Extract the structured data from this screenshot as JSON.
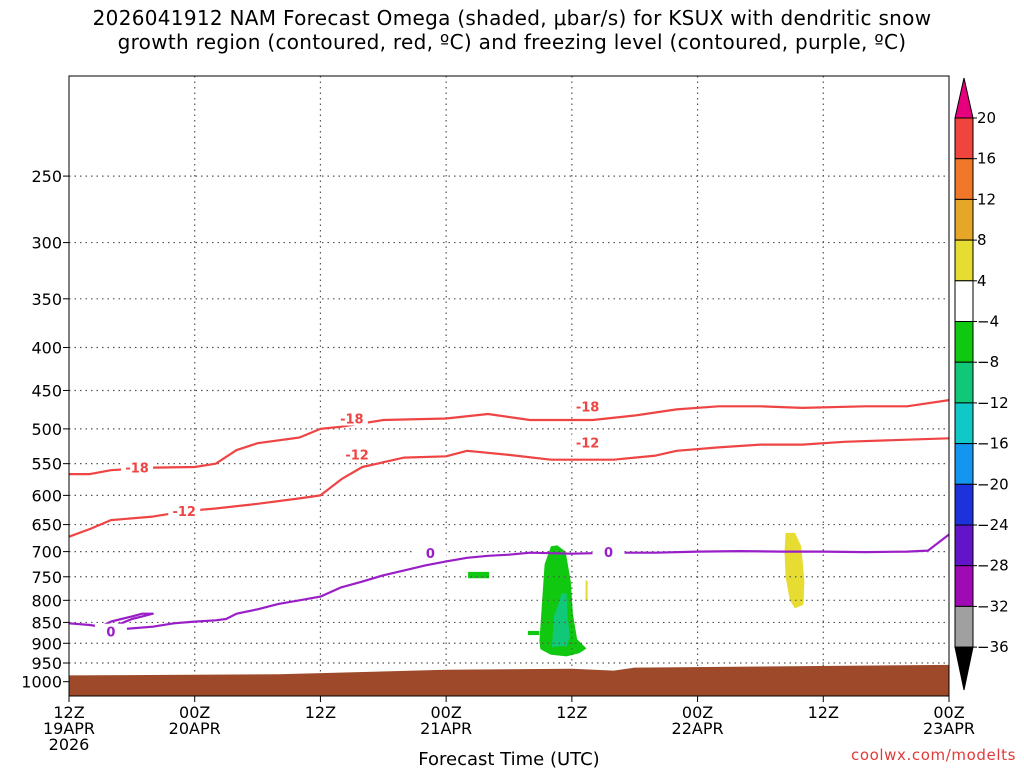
{
  "title_lines": [
    "2026041912 NAM Forecast Omega (shaded, μbar/s) for KSUX with dendritic snow",
    "growth region (contoured, red, ºC) and freezing level (contoured, purple, ºC)"
  ],
  "credit": "coolwx.com/modelts",
  "chart_data": {
    "type": "heatmap",
    "title": "2026041912 NAM Forecast Omega (shaded, μbar/s) for KSUX with dendritic snow growth region (contoured, red, ºC) and freezing level (contoured, purple, ºC)",
    "xlabel": "Forecast Time (UTC)",
    "ylabel": "",
    "x_range_hours": [
      0,
      84
    ],
    "x_ticks": [
      {
        "hour": 0,
        "label": [
          "12Z",
          "19APR",
          "2026"
        ]
      },
      {
        "hour": 12,
        "label": [
          "00Z",
          "20APR"
        ]
      },
      {
        "hour": 24,
        "label": [
          "12Z"
        ]
      },
      {
        "hour": 36,
        "label": [
          "00Z",
          "21APR"
        ]
      },
      {
        "hour": 48,
        "label": [
          "12Z"
        ]
      },
      {
        "hour": 60,
        "label": [
          "00Z",
          "22APR"
        ]
      },
      {
        "hour": 72,
        "label": [
          "12Z"
        ]
      },
      {
        "hour": 84,
        "label": [
          "00Z",
          "23APR"
        ]
      }
    ],
    "y_axis": "pressure (hPa), inverted",
    "y_range": [
      1040,
      190
    ],
    "y_ticks": [
      250,
      300,
      350,
      400,
      450,
      500,
      550,
      600,
      650,
      700,
      750,
      800,
      850,
      900,
      950,
      1000
    ],
    "grid": true,
    "colorbar": {
      "ticks": [
        20,
        16,
        12,
        8,
        4,
        -4,
        -8,
        -12,
        -16,
        -20,
        -24,
        -28,
        -32,
        -36
      ],
      "colors": [
        "#e6007e",
        "#f0453c",
        "#f07828",
        "#e6a628",
        "#e6dc32",
        "#ffffff",
        "#10c810",
        "#10c878",
        "#10c8c8",
        "#1496f0",
        "#1e32dc",
        "#6414c8",
        "#a00ab4",
        "#a0a0a0",
        "#000000"
      ]
    },
    "contours": [
      {
        "name": "-18",
        "color": "#ef4444",
        "points": [
          [
            0,
            566
          ],
          [
            2,
            566
          ],
          [
            4,
            560
          ],
          [
            8,
            556
          ],
          [
            12,
            555
          ],
          [
            14,
            550
          ],
          [
            16,
            530
          ],
          [
            18,
            520
          ],
          [
            22,
            512
          ],
          [
            24,
            500
          ],
          [
            26,
            497
          ],
          [
            30,
            488
          ],
          [
            36,
            486
          ],
          [
            40,
            480
          ],
          [
            44,
            488
          ],
          [
            50,
            488
          ],
          [
            54,
            482
          ],
          [
            58,
            474
          ],
          [
            62,
            470
          ],
          [
            66,
            470
          ],
          [
            70,
            472
          ],
          [
            76,
            470
          ],
          [
            80,
            470
          ],
          [
            84,
            462
          ]
        ]
      },
      {
        "name": "-12",
        "color": "#ef4444",
        "points": [
          [
            0,
            672
          ],
          [
            2,
            658
          ],
          [
            4,
            642
          ],
          [
            8,
            636
          ],
          [
            10,
            630
          ],
          [
            12,
            625
          ],
          [
            14,
            622
          ],
          [
            18,
            614
          ],
          [
            22,
            605
          ],
          [
            24,
            600
          ],
          [
            26,
            574
          ],
          [
            28,
            555
          ],
          [
            32,
            541
          ],
          [
            36,
            539
          ],
          [
            38,
            531
          ],
          [
            42,
            537
          ],
          [
            46,
            544
          ],
          [
            52,
            544
          ],
          [
            56,
            538
          ],
          [
            58,
            531
          ],
          [
            62,
            526
          ],
          [
            66,
            522
          ],
          [
            70,
            522
          ],
          [
            74,
            518
          ],
          [
            80,
            515
          ],
          [
            84,
            513
          ]
        ]
      },
      {
        "name": "0",
        "color": "#9a1ec8",
        "points": [
          [
            0,
            852
          ],
          [
            2,
            856
          ],
          [
            3,
            860
          ],
          [
            4,
            848
          ],
          [
            5,
            842
          ],
          [
            6,
            836
          ],
          [
            7,
            830
          ],
          [
            8,
            830
          ],
          [
            7,
            836
          ],
          [
            6,
            842
          ],
          [
            5,
            852
          ],
          [
            4,
            862
          ],
          [
            5,
            866
          ],
          [
            8,
            860
          ],
          [
            10,
            852
          ],
          [
            12,
            848
          ],
          [
            14,
            845
          ],
          [
            15,
            842
          ],
          [
            16,
            830
          ],
          [
            18,
            820
          ],
          [
            20,
            808
          ],
          [
            22,
            800
          ],
          [
            24,
            792
          ],
          [
            26,
            772
          ],
          [
            28,
            760
          ],
          [
            30,
            747
          ],
          [
            32,
            737
          ],
          [
            34,
            727
          ],
          [
            36,
            719
          ],
          [
            38,
            712
          ],
          [
            40,
            708
          ],
          [
            42,
            706
          ],
          [
            44,
            702
          ],
          [
            48,
            704
          ],
          [
            52,
            702
          ],
          [
            56,
            702
          ],
          [
            60,
            700
          ],
          [
            64,
            699
          ],
          [
            68,
            700
          ],
          [
            72,
            700
          ],
          [
            76,
            701
          ],
          [
            80,
            700
          ],
          [
            82,
            698
          ],
          [
            84,
            668
          ]
        ]
      }
    ],
    "omega_regions": [
      {
        "value_class": "-4 to -8",
        "color": "#10c810",
        "points": [
          [
            38.1,
            740
          ],
          [
            40.1,
            740
          ],
          [
            40.1,
            753
          ],
          [
            38.1,
            753
          ]
        ]
      },
      {
        "value_class": "-4 to -8",
        "color": "#10c810",
        "points": [
          [
            43.8,
            870
          ],
          [
            44.9,
            870
          ],
          [
            44.9,
            880
          ],
          [
            43.8,
            880
          ]
        ]
      },
      {
        "value_class": "-4 to -8",
        "color": "#10c810",
        "points": [
          [
            44.9,
            895
          ],
          [
            45.4,
            725
          ],
          [
            46.0,
            690
          ],
          [
            46.6,
            688
          ],
          [
            47.4,
            700
          ],
          [
            47.9,
            760
          ],
          [
            48.1,
            830
          ],
          [
            48.5,
            890
          ],
          [
            49.4,
            913
          ],
          [
            48.7,
            925
          ],
          [
            47.5,
            933
          ],
          [
            46.0,
            929
          ],
          [
            45.0,
            915
          ]
        ]
      },
      {
        "value_class": "-8 to -12",
        "color": "#10c878",
        "points": [
          [
            46.1,
            910
          ],
          [
            46.3,
            835
          ],
          [
            46.7,
            810
          ],
          [
            47.0,
            785
          ],
          [
            47.5,
            785
          ],
          [
            47.6,
            840
          ],
          [
            47.8,
            885
          ],
          [
            47.5,
            907
          ],
          [
            46.5,
            908
          ]
        ]
      },
      {
        "value_class": "4 to 8",
        "color": "#e6dc32",
        "points": [
          [
            68.3,
            700
          ],
          [
            68.4,
            665
          ],
          [
            69.3,
            665
          ],
          [
            69.9,
            690
          ],
          [
            70.2,
            760
          ],
          [
            70.1,
            810
          ],
          [
            69.3,
            818
          ],
          [
            68.8,
            800
          ],
          [
            68.4,
            750
          ]
        ]
      },
      {
        "value_class": "4 to 8",
        "color": "#e6dc32",
        "points": [
          [
            49.3,
            758
          ],
          [
            49.5,
            758
          ],
          [
            49.5,
            800
          ],
          [
            49.3,
            800
          ]
        ]
      }
    ],
    "terrain": {
      "color": "#9e4a2a",
      "points": [
        [
          0,
          983
        ],
        [
          20,
          980
        ],
        [
          36,
          968
        ],
        [
          48,
          965
        ],
        [
          52,
          970
        ],
        [
          54,
          962
        ],
        [
          84,
          955
        ]
      ]
    }
  }
}
